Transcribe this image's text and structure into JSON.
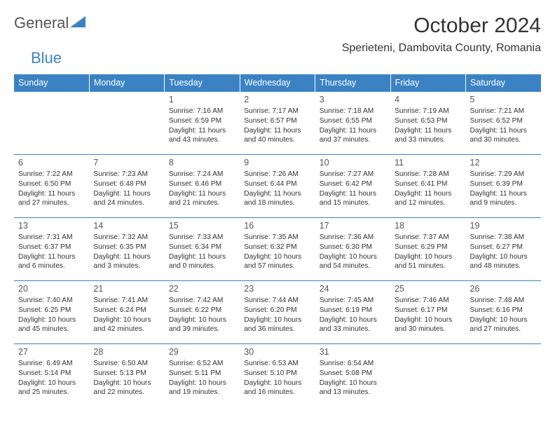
{
  "logo": {
    "text1": "General",
    "text2": "Blue"
  },
  "header": {
    "month_title": "October 2024",
    "location": "Sperieteni, Dambovita County, Romania"
  },
  "colors": {
    "header_bg": "#3b82c4",
    "header_text": "#ffffff",
    "border": "#3b82c4",
    "text": "#333333",
    "logo_gray": "#555555",
    "logo_blue": "#3b82c4"
  },
  "daynames": [
    "Sunday",
    "Monday",
    "Tuesday",
    "Wednesday",
    "Thursday",
    "Friday",
    "Saturday"
  ],
  "weeks": [
    [
      null,
      null,
      {
        "n": "1",
        "sr": "Sunrise: 7:16 AM",
        "ss": "Sunset: 6:59 PM",
        "dl": "Daylight: 11 hours and 43 minutes."
      },
      {
        "n": "2",
        "sr": "Sunrise: 7:17 AM",
        "ss": "Sunset: 6:57 PM",
        "dl": "Daylight: 11 hours and 40 minutes."
      },
      {
        "n": "3",
        "sr": "Sunrise: 7:18 AM",
        "ss": "Sunset: 6:55 PM",
        "dl": "Daylight: 11 hours and 37 minutes."
      },
      {
        "n": "4",
        "sr": "Sunrise: 7:19 AM",
        "ss": "Sunset: 6:53 PM",
        "dl": "Daylight: 11 hours and 33 minutes."
      },
      {
        "n": "5",
        "sr": "Sunrise: 7:21 AM",
        "ss": "Sunset: 6:52 PM",
        "dl": "Daylight: 11 hours and 30 minutes."
      }
    ],
    [
      {
        "n": "6",
        "sr": "Sunrise: 7:22 AM",
        "ss": "Sunset: 6:50 PM",
        "dl": "Daylight: 11 hours and 27 minutes."
      },
      {
        "n": "7",
        "sr": "Sunrise: 7:23 AM",
        "ss": "Sunset: 6:48 PM",
        "dl": "Daylight: 11 hours and 24 minutes."
      },
      {
        "n": "8",
        "sr": "Sunrise: 7:24 AM",
        "ss": "Sunset: 6:46 PM",
        "dl": "Daylight: 11 hours and 21 minutes."
      },
      {
        "n": "9",
        "sr": "Sunrise: 7:26 AM",
        "ss": "Sunset: 6:44 PM",
        "dl": "Daylight: 11 hours and 18 minutes."
      },
      {
        "n": "10",
        "sr": "Sunrise: 7:27 AM",
        "ss": "Sunset: 6:42 PM",
        "dl": "Daylight: 11 hours and 15 minutes."
      },
      {
        "n": "11",
        "sr": "Sunrise: 7:28 AM",
        "ss": "Sunset: 6:41 PM",
        "dl": "Daylight: 11 hours and 12 minutes."
      },
      {
        "n": "12",
        "sr": "Sunrise: 7:29 AM",
        "ss": "Sunset: 6:39 PM",
        "dl": "Daylight: 11 hours and 9 minutes."
      }
    ],
    [
      {
        "n": "13",
        "sr": "Sunrise: 7:31 AM",
        "ss": "Sunset: 6:37 PM",
        "dl": "Daylight: 11 hours and 6 minutes."
      },
      {
        "n": "14",
        "sr": "Sunrise: 7:32 AM",
        "ss": "Sunset: 6:35 PM",
        "dl": "Daylight: 11 hours and 3 minutes."
      },
      {
        "n": "15",
        "sr": "Sunrise: 7:33 AM",
        "ss": "Sunset: 6:34 PM",
        "dl": "Daylight: 11 hours and 0 minutes."
      },
      {
        "n": "16",
        "sr": "Sunrise: 7:35 AM",
        "ss": "Sunset: 6:32 PM",
        "dl": "Daylight: 10 hours and 57 minutes."
      },
      {
        "n": "17",
        "sr": "Sunrise: 7:36 AM",
        "ss": "Sunset: 6:30 PM",
        "dl": "Daylight: 10 hours and 54 minutes."
      },
      {
        "n": "18",
        "sr": "Sunrise: 7:37 AM",
        "ss": "Sunset: 6:29 PM",
        "dl": "Daylight: 10 hours and 51 minutes."
      },
      {
        "n": "19",
        "sr": "Sunrise: 7:38 AM",
        "ss": "Sunset: 6:27 PM",
        "dl": "Daylight: 10 hours and 48 minutes."
      }
    ],
    [
      {
        "n": "20",
        "sr": "Sunrise: 7:40 AM",
        "ss": "Sunset: 6:25 PM",
        "dl": "Daylight: 10 hours and 45 minutes."
      },
      {
        "n": "21",
        "sr": "Sunrise: 7:41 AM",
        "ss": "Sunset: 6:24 PM",
        "dl": "Daylight: 10 hours and 42 minutes."
      },
      {
        "n": "22",
        "sr": "Sunrise: 7:42 AM",
        "ss": "Sunset: 6:22 PM",
        "dl": "Daylight: 10 hours and 39 minutes."
      },
      {
        "n": "23",
        "sr": "Sunrise: 7:44 AM",
        "ss": "Sunset: 6:20 PM",
        "dl": "Daylight: 10 hours and 36 minutes."
      },
      {
        "n": "24",
        "sr": "Sunrise: 7:45 AM",
        "ss": "Sunset: 6:19 PM",
        "dl": "Daylight: 10 hours and 33 minutes."
      },
      {
        "n": "25",
        "sr": "Sunrise: 7:46 AM",
        "ss": "Sunset: 6:17 PM",
        "dl": "Daylight: 10 hours and 30 minutes."
      },
      {
        "n": "26",
        "sr": "Sunrise: 7:48 AM",
        "ss": "Sunset: 6:16 PM",
        "dl": "Daylight: 10 hours and 27 minutes."
      }
    ],
    [
      {
        "n": "27",
        "sr": "Sunrise: 6:49 AM",
        "ss": "Sunset: 5:14 PM",
        "dl": "Daylight: 10 hours and 25 minutes."
      },
      {
        "n": "28",
        "sr": "Sunrise: 6:50 AM",
        "ss": "Sunset: 5:13 PM",
        "dl": "Daylight: 10 hours and 22 minutes."
      },
      {
        "n": "29",
        "sr": "Sunrise: 6:52 AM",
        "ss": "Sunset: 5:11 PM",
        "dl": "Daylight: 10 hours and 19 minutes."
      },
      {
        "n": "30",
        "sr": "Sunrise: 6:53 AM",
        "ss": "Sunset: 5:10 PM",
        "dl": "Daylight: 10 hours and 16 minutes."
      },
      {
        "n": "31",
        "sr": "Sunrise: 6:54 AM",
        "ss": "Sunset: 5:08 PM",
        "dl": "Daylight: 10 hours and 13 minutes."
      },
      null,
      null
    ]
  ]
}
